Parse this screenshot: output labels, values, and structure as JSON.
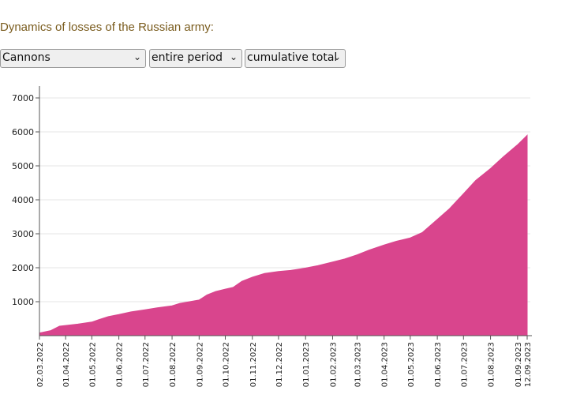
{
  "header": {
    "title": "Dynamics of losses of the Russian army:"
  },
  "filters": {
    "category": "Cannons",
    "period": "entire period",
    "mode": "cumulative total",
    "chevron_icon": "chevron-down-icon"
  },
  "colors": {
    "area": "#d9458d",
    "grid": "#e6e6e6",
    "axis": "#555555",
    "title": "#7a5c1e"
  },
  "chart_data": {
    "type": "area",
    "title": "Dynamics of losses of the Russian army:",
    "xlabel": "",
    "ylabel": "",
    "ylim": [
      0,
      7000
    ],
    "xlim": [
      "2022-03-02",
      "2023-09-12"
    ],
    "grid": true,
    "y_ticks": [
      1000,
      2000,
      3000,
      4000,
      5000,
      6000,
      7000
    ],
    "x_ticks": [
      {
        "date": "2022-03-02",
        "label": "02.03.2022"
      },
      {
        "date": "2022-04-01",
        "label": "01.04.2022"
      },
      {
        "date": "2022-05-01",
        "label": "01.05.2022"
      },
      {
        "date": "2022-06-01",
        "label": "01.06.2022"
      },
      {
        "date": "2022-07-01",
        "label": "01.07.2022"
      },
      {
        "date": "2022-08-01",
        "label": "01.08.2022"
      },
      {
        "date": "2022-09-01",
        "label": "01.09.2022"
      },
      {
        "date": "2022-10-01",
        "label": "01.10.2022"
      },
      {
        "date": "2022-11-01",
        "label": "01.11.2022"
      },
      {
        "date": "2022-12-01",
        "label": "01.12.2022"
      },
      {
        "date": "2023-01-01",
        "label": "01.01.2023"
      },
      {
        "date": "2023-02-01",
        "label": "01.02.2023"
      },
      {
        "date": "2023-03-01",
        "label": "01.03.2023"
      },
      {
        "date": "2023-04-01",
        "label": "01.04.2023"
      },
      {
        "date": "2023-05-01",
        "label": "01.05.2023"
      },
      {
        "date": "2023-06-01",
        "label": "01.06.2023"
      },
      {
        "date": "2023-07-01",
        "label": "01.07.2023"
      },
      {
        "date": "2023-08-01",
        "label": "01.08.2023"
      },
      {
        "date": "2023-09-01",
        "label": "01.09.2023"
      },
      {
        "date": "2023-09-12",
        "label": "12.09.2023"
      }
    ],
    "series": [
      {
        "points": [
          [
            "2022-03-02",
            80
          ],
          [
            "2022-03-15",
            150
          ],
          [
            "2022-03-25",
            280
          ],
          [
            "2022-04-01",
            300
          ],
          [
            "2022-04-15",
            340
          ],
          [
            "2022-05-01",
            400
          ],
          [
            "2022-05-10",
            480
          ],
          [
            "2022-05-20",
            560
          ],
          [
            "2022-06-01",
            620
          ],
          [
            "2022-06-15",
            700
          ],
          [
            "2022-07-01",
            760
          ],
          [
            "2022-07-15",
            820
          ],
          [
            "2022-08-01",
            880
          ],
          [
            "2022-08-10",
            950
          ],
          [
            "2022-09-01",
            1050
          ],
          [
            "2022-09-10",
            1200
          ],
          [
            "2022-09-20",
            1300
          ],
          [
            "2022-10-01",
            1370
          ],
          [
            "2022-10-10",
            1420
          ],
          [
            "2022-10-20",
            1600
          ],
          [
            "2022-11-01",
            1720
          ],
          [
            "2022-11-15",
            1830
          ],
          [
            "2022-12-01",
            1890
          ],
          [
            "2022-12-15",
            1920
          ],
          [
            "2023-01-01",
            1990
          ],
          [
            "2023-01-15",
            2060
          ],
          [
            "2023-02-01",
            2170
          ],
          [
            "2023-02-15",
            2260
          ],
          [
            "2023-03-01",
            2380
          ],
          [
            "2023-03-15",
            2520
          ],
          [
            "2023-04-01",
            2670
          ],
          [
            "2023-04-15",
            2780
          ],
          [
            "2023-05-01",
            2880
          ],
          [
            "2023-05-15",
            3040
          ],
          [
            "2023-06-01",
            3420
          ],
          [
            "2023-06-15",
            3740
          ],
          [
            "2023-07-01",
            4180
          ],
          [
            "2023-07-15",
            4570
          ],
          [
            "2023-08-01",
            4920
          ],
          [
            "2023-08-15",
            5250
          ],
          [
            "2023-09-01",
            5620
          ],
          [
            "2023-09-12",
            5900
          ]
        ]
      }
    ]
  }
}
